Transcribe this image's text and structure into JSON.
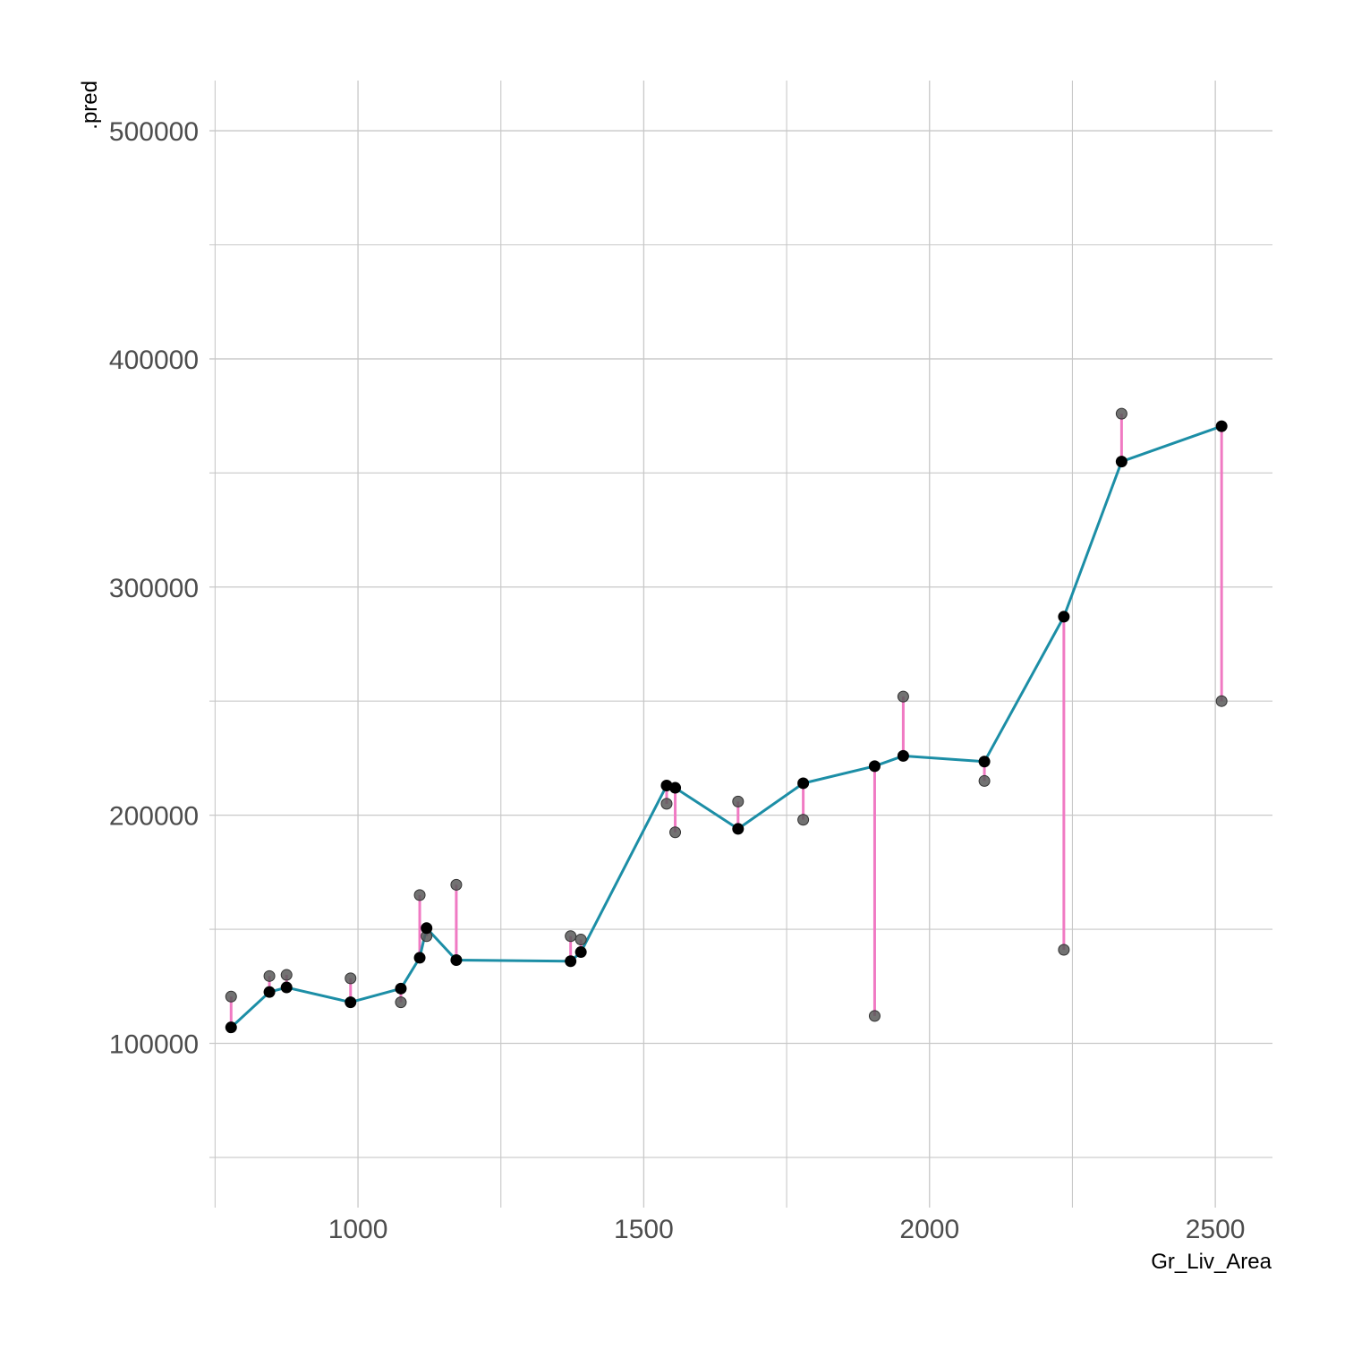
{
  "chart_data": {
    "type": "scatter",
    "xlabel": "Gr_Liv_Area",
    "ylabel": ".pred",
    "xlim": [
      740,
      2600
    ],
    "ylim": [
      28000,
      522000
    ],
    "x_ticks": [
      1000,
      1500,
      2000,
      2500
    ],
    "x_tick_labels": [
      "1000",
      "1500",
      "2000",
      "2500"
    ],
    "x_minor_ticks": [
      750,
      1250,
      1750,
      2250
    ],
    "y_ticks": [
      100000,
      200000,
      300000,
      400000,
      500000
    ],
    "y_tick_labels": [
      "100000",
      "200000",
      "300000",
      "400000",
      "500000"
    ],
    "y_minor_ticks": [
      50000,
      150000,
      250000,
      350000,
      450000
    ],
    "grid": true,
    "colors": {
      "prediction_line": "#1c8ea6",
      "residual_segment": "#f07ac3",
      "predicted_point": "#000000",
      "observed_point": "#595959",
      "grid": "#c8c8c8"
    },
    "points": [
      {
        "x": 778,
        "pred": 107000,
        "observed": 120500
      },
      {
        "x": 845,
        "pred": 122500,
        "observed": 129500
      },
      {
        "x": 875,
        "pred": 124500,
        "observed": 130000
      },
      {
        "x": 987,
        "pred": 118000,
        "observed": 128500
      },
      {
        "x": 1075,
        "pred": 124000,
        "observed": 118000
      },
      {
        "x": 1108,
        "pred": 137500,
        "observed": 165000
      },
      {
        "x": 1120,
        "pred": 150500,
        "observed": 147000
      },
      {
        "x": 1172,
        "pred": 136500,
        "observed": 169500
      },
      {
        "x": 1372,
        "pred": 136000,
        "observed": 147000
      },
      {
        "x": 1390,
        "pred": 140000,
        "observed": 145500
      },
      {
        "x": 1540,
        "pred": 213000,
        "observed": 205000
      },
      {
        "x": 1555,
        "pred": 212000,
        "observed": 192500
      },
      {
        "x": 1665,
        "pred": 194000,
        "observed": 206000
      },
      {
        "x": 1779,
        "pred": 214000,
        "observed": 198000
      },
      {
        "x": 1904,
        "pred": 221500,
        "observed": 112000
      },
      {
        "x": 1954,
        "pred": 226000,
        "observed": 252000
      },
      {
        "x": 2096,
        "pred": 223500,
        "observed": 215000
      },
      {
        "x": 2235,
        "pred": 287000,
        "observed": 141000
      },
      {
        "x": 2336,
        "pred": 355000,
        "observed": 376000
      },
      {
        "x": 2511,
        "pred": 370500,
        "observed": 250000
      }
    ]
  }
}
